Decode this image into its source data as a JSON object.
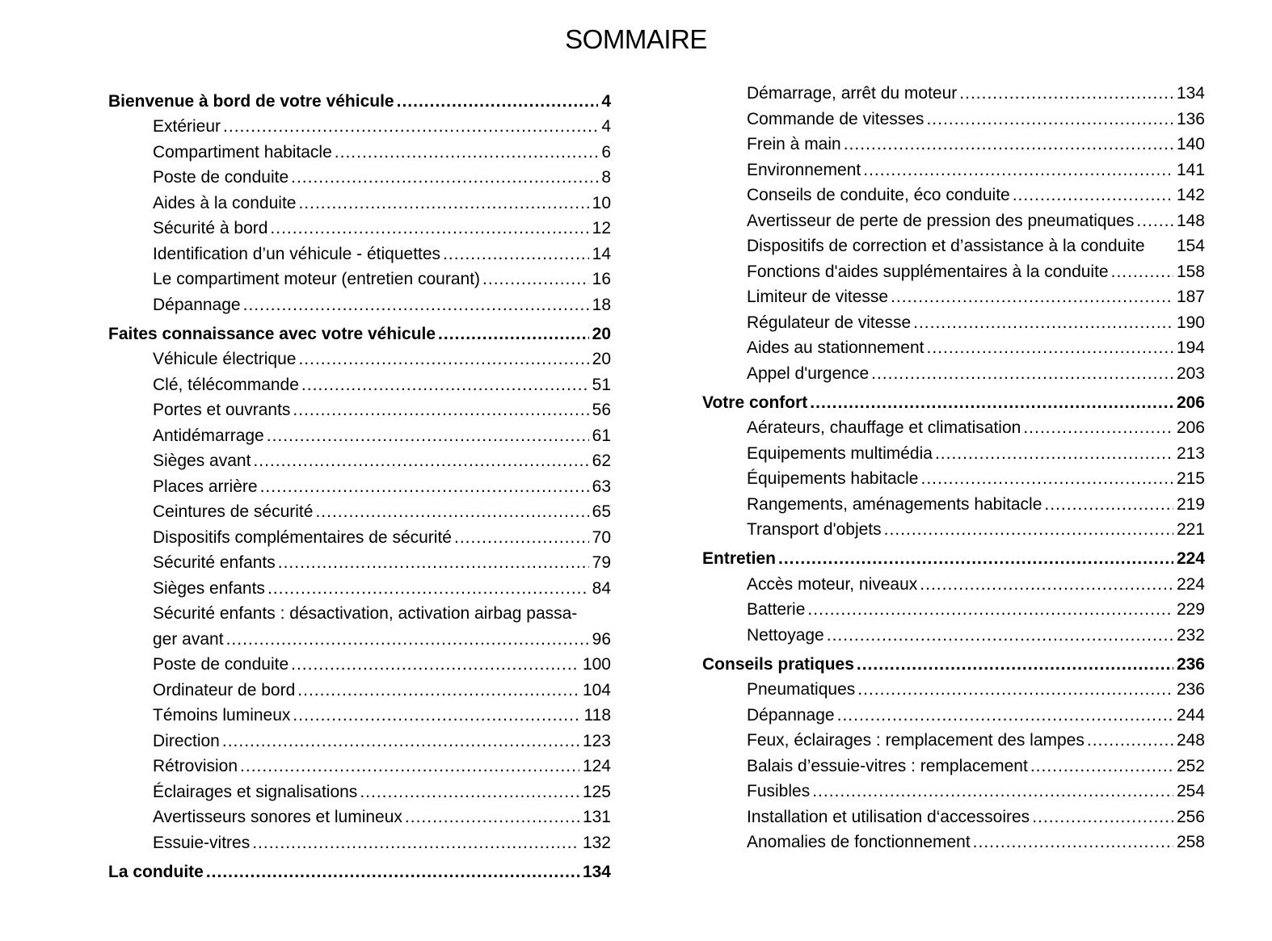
{
  "title": "SOMMAIRE",
  "left": [
    {
      "type": "head",
      "label": "Bienvenue à bord de votre véhicule",
      "page": "4"
    },
    {
      "type": "sub",
      "label": "Extérieur",
      "page": "4"
    },
    {
      "type": "sub",
      "label": "Compartiment habitacle",
      "page": "6"
    },
    {
      "type": "sub",
      "label": "Poste de conduite",
      "page": "8"
    },
    {
      "type": "sub",
      "label": "Aides à la conduite",
      "page": "10"
    },
    {
      "type": "sub",
      "label": "Sécurité à bord",
      "page": "12"
    },
    {
      "type": "sub",
      "label": "Identification d’un véhicule - étiquettes",
      "page": "14"
    },
    {
      "type": "sub",
      "label": "Le compartiment moteur (entretien courant)",
      "page": "16"
    },
    {
      "type": "sub",
      "label": "Dépannage",
      "page": "18"
    },
    {
      "type": "head",
      "label": "Faites connaissance avec votre véhicule",
      "page": "20"
    },
    {
      "type": "sub",
      "label": "Véhicule électrique",
      "page": "20"
    },
    {
      "type": "sub",
      "label": "Clé, télécommande",
      "page": "51"
    },
    {
      "type": "sub",
      "label": "Portes et ouvrants",
      "page": "56"
    },
    {
      "type": "sub",
      "label": "Antidémarrage",
      "page": "61"
    },
    {
      "type": "sub",
      "label": "Sièges avant",
      "page": "62"
    },
    {
      "type": "sub",
      "label": "Places arrière",
      "page": "63"
    },
    {
      "type": "sub",
      "label": "Ceintures de sécurité",
      "page": "65"
    },
    {
      "type": "sub",
      "label": "Dispositifs complémentaires de sécurité",
      "page": "70"
    },
    {
      "type": "sub",
      "label": "Sécurité enfants",
      "page": "79"
    },
    {
      "type": "sub",
      "label": "Sièges enfants",
      "page": "84"
    },
    {
      "type": "sub",
      "label": "Sécurité enfants : désactivation, activation airbag passa-",
      "page": ""
    },
    {
      "type": "sub",
      "label": "ger avant",
      "page": "96"
    },
    {
      "type": "sub",
      "label": "Poste de conduite",
      "page": "100"
    },
    {
      "type": "sub",
      "label": "Ordinateur de bord",
      "page": "104"
    },
    {
      "type": "sub",
      "label": "Témoins lumineux",
      "page": "118"
    },
    {
      "type": "sub",
      "label": "Direction",
      "page": "123"
    },
    {
      "type": "sub",
      "label": "Rétrovision",
      "page": "124"
    },
    {
      "type": "sub",
      "label": "Éclairages et signalisations",
      "page": "125"
    },
    {
      "type": "sub",
      "label": "Avertisseurs sonores et lumineux",
      "page": "131"
    },
    {
      "type": "sub",
      "label": "Essuie-vitres",
      "page": "132"
    },
    {
      "type": "head",
      "label": "La conduite",
      "page": "134"
    }
  ],
  "right": [
    {
      "type": "sub",
      "label": "Démarrage, arrêt du moteur",
      "page": "134"
    },
    {
      "type": "sub",
      "label": "Commande de vitesses",
      "page": "136"
    },
    {
      "type": "sub",
      "label": "Frein à main",
      "page": "140"
    },
    {
      "type": "sub",
      "label": "Environnement",
      "page": "141"
    },
    {
      "type": "sub",
      "label": "Conseils de conduite, éco conduite",
      "page": "142"
    },
    {
      "type": "sub",
      "label": "Avertisseur de perte de pression des pneumatiques",
      "page": "148"
    },
    {
      "type": "sub",
      "label": "Dispositifs de correction et d’assistance à la conduite",
      "page": "154"
    },
    {
      "type": "sub",
      "label": "Fonctions d'aides supplémentaires à la conduite",
      "page": "158"
    },
    {
      "type": "sub",
      "label": "Limiteur de vitesse",
      "page": "187"
    },
    {
      "type": "sub",
      "label": "Régulateur de vitesse",
      "page": "190"
    },
    {
      "type": "sub",
      "label": "Aides au stationnement",
      "page": "194"
    },
    {
      "type": "sub",
      "label": "Appel d'urgence",
      "page": "203"
    },
    {
      "type": "head",
      "label": "Votre confort",
      "page": "206"
    },
    {
      "type": "sub",
      "label": "Aérateurs, chauffage et climatisation",
      "page": "206"
    },
    {
      "type": "sub",
      "label": "Equipements multimédia",
      "page": "213"
    },
    {
      "type": "sub",
      "label": "Équipements habitacle",
      "page": "215"
    },
    {
      "type": "sub",
      "label": "Rangements, aménagements habitacle",
      "page": "219"
    },
    {
      "type": "sub",
      "label": "Transport d'objets",
      "page": "221"
    },
    {
      "type": "head",
      "label": "Entretien",
      "page": "224"
    },
    {
      "type": "sub",
      "label": "Accès moteur, niveaux",
      "page": "224"
    },
    {
      "type": "sub",
      "label": "Batterie",
      "page": "229"
    },
    {
      "type": "sub",
      "label": "Nettoyage",
      "page": "232"
    },
    {
      "type": "head",
      "label": "Conseils pratiques",
      "page": "236"
    },
    {
      "type": "sub",
      "label": "Pneumatiques",
      "page": "236"
    },
    {
      "type": "sub",
      "label": "Dépannage",
      "page": "244"
    },
    {
      "type": "sub",
      "label": "Feux, éclairages : remplacement des lampes",
      "page": "248"
    },
    {
      "type": "sub",
      "label": "Balais d’essuie-vitres : remplacement",
      "page": "252"
    },
    {
      "type": "sub",
      "label": "Fusibles",
      "page": "254"
    },
    {
      "type": "sub",
      "label": "Installation et utilisation d‘accessoires",
      "page": "256"
    },
    {
      "type": "sub",
      "label": "Anomalies de fonctionnement",
      "page": "258"
    }
  ]
}
